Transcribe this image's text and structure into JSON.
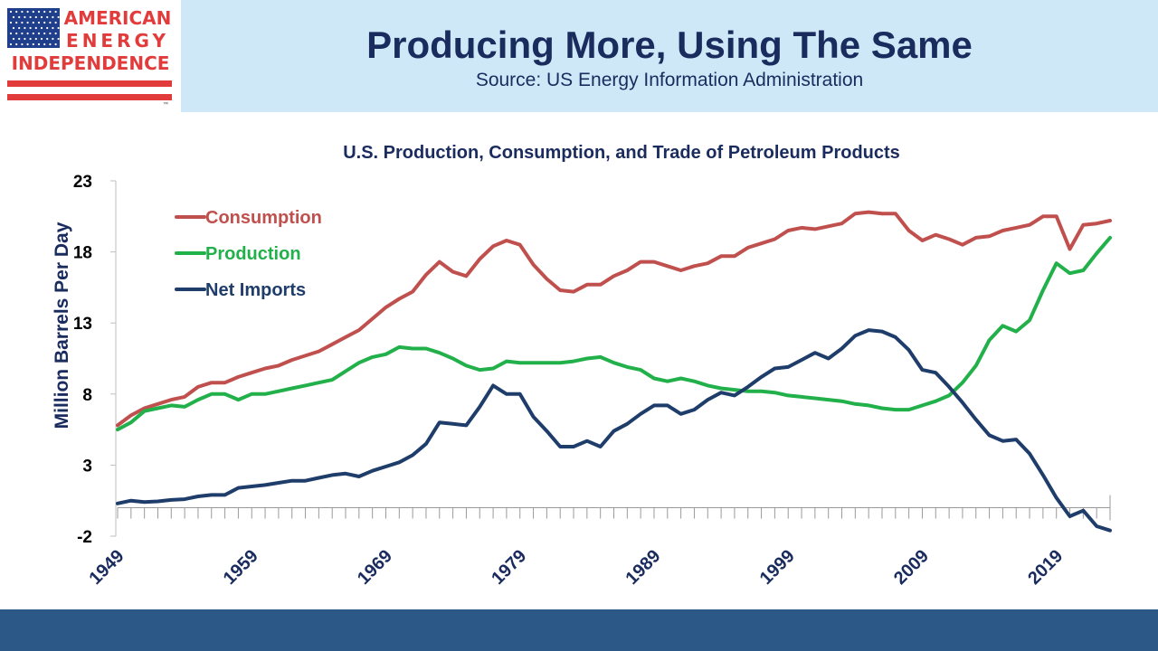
{
  "logo": {
    "line1": "AMERICAN",
    "line2": "ENERGY",
    "line3": "INDEPENDENCE",
    "tm": "™"
  },
  "header": {
    "title": "Producing More, Using The Same",
    "subtitle": "Source: US Energy Information Administration"
  },
  "colors": {
    "consumption": "#c0504d",
    "production": "#22b04a",
    "net_imports": "#1f3d6b",
    "header_band": "#cfe8f8",
    "footer_band": "#2b5887",
    "title_text": "#1a2b5e",
    "logo_red": "#e23b3b",
    "logo_blue": "#1f3f8c"
  },
  "chart_data": {
    "type": "line",
    "title": "U.S. Production, Consumption, and Trade of Petroleum Products",
    "ylabel": "Million Barrels Per Day",
    "xlabel": "",
    "ylim": [
      -2,
      23
    ],
    "yticks": [
      "23",
      "18",
      "13",
      "8",
      "3",
      "-2"
    ],
    "xtick_labels": [
      "1949",
      "1959",
      "1969",
      "1979",
      "1989",
      "1999",
      "2009",
      "2019"
    ],
    "grid": false,
    "legend": "top-left",
    "x": [
      1949,
      1950,
      1951,
      1952,
      1953,
      1954,
      1955,
      1956,
      1957,
      1958,
      1959,
      1960,
      1961,
      1962,
      1963,
      1964,
      1965,
      1966,
      1967,
      1968,
      1969,
      1970,
      1971,
      1972,
      1973,
      1974,
      1975,
      1976,
      1977,
      1978,
      1979,
      1980,
      1981,
      1982,
      1983,
      1984,
      1985,
      1986,
      1987,
      1988,
      1989,
      1990,
      1991,
      1992,
      1993,
      1994,
      1995,
      1996,
      1997,
      1998,
      1999,
      2000,
      2001,
      2002,
      2003,
      2004,
      2005,
      2006,
      2007,
      2008,
      2009,
      2010,
      2011,
      2012,
      2013,
      2014,
      2015,
      2016,
      2017,
      2018,
      2019,
      2020,
      2021,
      2022,
      2023
    ],
    "series": [
      {
        "name": "Consumption",
        "values": [
          5.8,
          6.5,
          7.0,
          7.3,
          7.6,
          7.8,
          8.5,
          8.8,
          8.8,
          9.2,
          9.5,
          9.8,
          10.0,
          10.4,
          10.7,
          11.0,
          11.5,
          12.0,
          12.5,
          13.3,
          14.1,
          14.7,
          15.2,
          16.4,
          17.3,
          16.6,
          16.3,
          17.5,
          18.4,
          18.8,
          18.5,
          17.1,
          16.1,
          15.3,
          15.2,
          15.7,
          15.7,
          16.3,
          16.7,
          17.3,
          17.3,
          17.0,
          16.7,
          17.0,
          17.2,
          17.7,
          17.7,
          18.3,
          18.6,
          18.9,
          19.5,
          19.7,
          19.6,
          19.8,
          20.0,
          20.7,
          20.8,
          20.7,
          20.7,
          19.5,
          18.8,
          19.2,
          18.9,
          18.5,
          19.0,
          19.1,
          19.5,
          19.7,
          19.9,
          20.5,
          20.5,
          18.2,
          19.9,
          20.0,
          20.2
        ]
      },
      {
        "name": "Production",
        "values": [
          5.5,
          6.0,
          6.8,
          7.0,
          7.2,
          7.1,
          7.6,
          8.0,
          8.0,
          7.6,
          8.0,
          8.0,
          8.2,
          8.4,
          8.6,
          8.8,
          9.0,
          9.6,
          10.2,
          10.6,
          10.8,
          11.3,
          11.2,
          11.2,
          10.9,
          10.5,
          10.0,
          9.7,
          9.8,
          10.3,
          10.2,
          10.2,
          10.2,
          10.2,
          10.3,
          10.5,
          10.6,
          10.2,
          9.9,
          9.7,
          9.1,
          8.9,
          9.1,
          8.9,
          8.6,
          8.4,
          8.3,
          8.2,
          8.2,
          8.1,
          7.9,
          7.8,
          7.7,
          7.6,
          7.5,
          7.3,
          7.2,
          7.0,
          6.9,
          6.9,
          7.2,
          7.5,
          7.9,
          8.8,
          10.0,
          11.8,
          12.8,
          12.4,
          13.2,
          15.3,
          17.2,
          16.5,
          16.7,
          17.9,
          19.0
        ]
      },
      {
        "name": "Net Imports",
        "values": [
          0.3,
          0.5,
          0.4,
          0.45,
          0.55,
          0.6,
          0.8,
          0.9,
          0.9,
          1.4,
          1.5,
          1.6,
          1.75,
          1.9,
          1.9,
          2.1,
          2.3,
          2.4,
          2.2,
          2.6,
          2.9,
          3.2,
          3.7,
          4.5,
          6.0,
          5.9,
          5.8,
          7.1,
          8.6,
          8.0,
          8.0,
          6.4,
          5.4,
          4.3,
          4.3,
          4.7,
          4.3,
          5.4,
          5.9,
          6.6,
          7.2,
          7.2,
          6.6,
          6.9,
          7.6,
          8.1,
          7.9,
          8.5,
          9.2,
          9.8,
          9.9,
          10.4,
          10.9,
          10.5,
          11.2,
          12.1,
          12.5,
          12.4,
          12.0,
          11.1,
          9.7,
          9.5,
          8.5,
          7.4,
          6.2,
          5.1,
          4.7,
          4.8,
          3.8,
          2.3,
          0.7,
          -0.6,
          -0.2,
          -1.3,
          -1.6
        ]
      }
    ]
  }
}
